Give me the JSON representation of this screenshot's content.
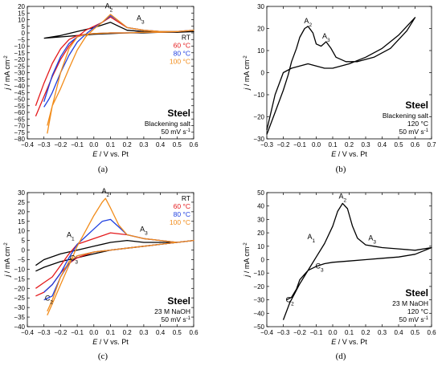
{
  "panel_labels": [
    "(a)",
    "(b)",
    "(c)",
    "(d)"
  ],
  "colors": {
    "RT": "#000000",
    "60 °C": "#e41a1c",
    "80 °C": "#1f3fe0",
    "100 °C": "#f28c1a"
  },
  "chart_data": [
    {
      "type": "line",
      "panel": "(a)",
      "xlabel": "E / V vs. Pt",
      "ylabel": "j / mA cm-2",
      "xlim": [
        -0.4,
        0.6
      ],
      "ylim": [
        -80,
        20
      ],
      "xticks": [
        -0.4,
        -0.3,
        -0.2,
        -0.1,
        0.0,
        0.1,
        0.2,
        0.3,
        0.4,
        0.5,
        0.6
      ],
      "yticks": [
        -80,
        -75,
        -70,
        -65,
        -60,
        -55,
        -50,
        -45,
        -40,
        -35,
        -30,
        -25,
        -20,
        -15,
        -10,
        -5,
        0,
        5,
        10,
        15,
        20
      ],
      "grid": false,
      "legend_position": "right",
      "legend": [
        "RT",
        "60 °C",
        "80 °C",
        "100 °C"
      ],
      "peaks": [
        {
          "letter": "A",
          "sub": "2",
          "x": 0.09,
          "y": 16
        },
        {
          "letter": "A",
          "sub": "3",
          "x": 0.28,
          "y": 7
        }
      ],
      "info_title": "Steel",
      "info_lines": [
        "Blackening salt",
        "50 mV s-1"
      ],
      "series": [
        {
          "name": "RT",
          "x": [
            -0.3,
            -0.2,
            -0.1,
            0.0,
            0.05,
            0.1,
            0.15,
            0.2,
            0.3,
            0.4,
            0.5,
            0.6,
            0.5,
            0.4,
            0.3,
            0.2,
            0.1,
            0.0,
            -0.1,
            -0.2,
            -0.3
          ],
          "y": [
            -4,
            -2,
            1,
            4,
            6,
            8,
            5,
            2,
            1,
            0.5,
            0.5,
            1,
            0.5,
            0.5,
            0,
            0,
            -0.5,
            -1,
            -2,
            -3,
            -4
          ]
        },
        {
          "name": "60 °C",
          "x": [
            -0.35,
            -0.3,
            -0.25,
            -0.2,
            -0.15,
            -0.1,
            -0.05,
            0.0,
            0.05,
            0.1,
            0.15,
            0.2,
            0.3,
            0.4,
            0.5,
            0.6,
            0.5,
            0.4,
            0.3,
            0.2,
            0.1,
            0.0,
            -0.05,
            -0.1,
            -0.15,
            -0.2,
            -0.25,
            -0.3,
            -0.35
          ],
          "y": [
            -63,
            -48,
            -33,
            -20,
            -10,
            -3,
            2,
            5,
            8,
            12,
            8,
            4,
            2,
            1,
            1,
            2,
            1,
            0.5,
            0.5,
            0,
            0,
            -0.5,
            -1,
            -2,
            -5,
            -12,
            -23,
            -38,
            -55
          ]
        },
        {
          "name": "80 °C",
          "x": [
            -0.3,
            -0.27,
            -0.25,
            -0.2,
            -0.15,
            -0.1,
            -0.05,
            0.0,
            0.05,
            0.1,
            0.15,
            0.2,
            0.3,
            0.4,
            0.5,
            0.6,
            0.5,
            0.4,
            0.3,
            0.2,
            0.1,
            0.0,
            -0.05,
            -0.1,
            -0.15,
            -0.2,
            -0.25,
            -0.3
          ],
          "y": [
            -56,
            -50,
            -45,
            -30,
            -17,
            -7,
            -1,
            4,
            8,
            13,
            9,
            4,
            2,
            1,
            1,
            2,
            1,
            0.5,
            0.5,
            0,
            0,
            -0.5,
            -1,
            -3,
            -8,
            -18,
            -32,
            -52
          ]
        },
        {
          "name": "100 °C",
          "x": [
            -0.28,
            -0.25,
            -0.2,
            -0.15,
            -0.1,
            -0.05,
            0.0,
            0.05,
            0.1,
            0.15,
            0.2,
            0.3,
            0.4,
            0.5,
            0.6,
            0.5,
            0.4,
            0.3,
            0.2,
            0.1,
            0.0,
            -0.05,
            -0.1,
            -0.15,
            -0.2,
            -0.25,
            -0.28
          ],
          "y": [
            -76,
            -55,
            -42,
            -27,
            -13,
            -3,
            3,
            8,
            14,
            9,
            4,
            2,
            1,
            1,
            2,
            1,
            0.5,
            0.5,
            0,
            0,
            -0.5,
            -1,
            -3,
            -12,
            -30,
            -55,
            -70
          ]
        }
      ]
    },
    {
      "type": "line",
      "panel": "(b)",
      "xlabel": "E / V vs. Pt",
      "ylabel": "j / mA cm-2",
      "xlim": [
        -0.3,
        0.7
      ],
      "ylim": [
        -30,
        30
      ],
      "xticks": [
        -0.3,
        -0.2,
        -0.1,
        0.0,
        0.1,
        0.2,
        0.3,
        0.4,
        0.5,
        0.6,
        0.7
      ],
      "yticks": [
        -30,
        -20,
        -10,
        0,
        10,
        20,
        30
      ],
      "grid": false,
      "peaks": [
        {
          "letter": "A",
          "sub": "2",
          "x": -0.05,
          "y": 21
        },
        {
          "letter": "A",
          "sub": "3",
          "x": 0.06,
          "y": 14
        }
      ],
      "info_title": "Steel",
      "info_lines": [
        "Blackening salt",
        "120 °C",
        "50 mV s-1"
      ],
      "series": [
        {
          "name": "",
          "x": [
            -0.3,
            -0.25,
            -0.2,
            -0.17,
            -0.15,
            -0.12,
            -0.1,
            -0.07,
            -0.05,
            -0.02,
            0.0,
            0.03,
            0.06,
            0.09,
            0.12,
            0.18,
            0.25,
            0.35,
            0.45,
            0.55,
            0.6,
            0.5,
            0.4,
            0.3,
            0.2,
            0.15,
            0.1,
            0.05,
            0.0,
            -0.05,
            -0.1,
            -0.15,
            -0.2,
            -0.25,
            -0.3
          ],
          "y": [
            -28,
            -18,
            -8,
            -1,
            5,
            11,
            16,
            20,
            21,
            18,
            13,
            12,
            14,
            11,
            7,
            5,
            5,
            7,
            11,
            19,
            25,
            17,
            11,
            7,
            4,
            3,
            2,
            2,
            3,
            4,
            3,
            2,
            0,
            -10,
            -26
          ]
        }
      ]
    },
    {
      "type": "line",
      "panel": "(c)",
      "xlabel": "E / V vs. Pt",
      "ylabel": "j / mA cm-2",
      "xlim": [
        -0.4,
        0.6
      ],
      "ylim": [
        -40,
        30
      ],
      "xticks": [
        -0.4,
        -0.3,
        -0.2,
        -0.1,
        0.0,
        0.1,
        0.2,
        0.3,
        0.4,
        0.5,
        0.6
      ],
      "yticks": [
        -40,
        -35,
        -30,
        -25,
        -20,
        -15,
        -10,
        -5,
        0,
        5,
        10,
        15,
        20,
        25,
        30
      ],
      "grid": false,
      "legend_position": "top-right",
      "legend": [
        "RT",
        "60 °C",
        "80 °C",
        "100 °C"
      ],
      "peaks": [
        {
          "letter": "A",
          "sub": "1",
          "x": -0.14,
          "y": 5
        },
        {
          "letter": "A",
          "sub": "2",
          "x": 0.07,
          "y": 28
        },
        {
          "letter": "A",
          "sub": "3",
          "x": 0.3,
          "y": 8
        },
        {
          "letter": "C",
          "sub": "2",
          "x": -0.27,
          "y": -28
        },
        {
          "letter": "C",
          "sub": "3",
          "x": -0.12,
          "y": -7
        }
      ],
      "info_title": "Steel",
      "info_lines": [
        "23 M NaOH",
        "50 mV s-1"
      ],
      "series": [
        {
          "name": "RT",
          "x": [
            -0.35,
            -0.3,
            -0.2,
            -0.1,
            0.0,
            0.1,
            0.2,
            0.3,
            0.4,
            0.5,
            0.6,
            0.5,
            0.4,
            0.3,
            0.2,
            0.1,
            0.0,
            -0.1,
            -0.2,
            -0.3,
            -0.35
          ],
          "y": [
            -8,
            -5,
            -2,
            0,
            2,
            4,
            5,
            4,
            4,
            4,
            5,
            4,
            3,
            2,
            1,
            0,
            -2,
            -4,
            -6,
            -9,
            -11
          ]
        },
        {
          "name": "60 °C",
          "x": [
            -0.35,
            -0.3,
            -0.25,
            -0.2,
            -0.15,
            -0.1,
            0.0,
            0.1,
            0.2,
            0.3,
            0.4,
            0.5,
            0.6,
            0.5,
            0.4,
            0.3,
            0.2,
            0.1,
            0.0,
            -0.1,
            -0.15,
            -0.2,
            -0.25,
            -0.3,
            -0.35
          ],
          "y": [
            -20,
            -17,
            -14,
            -8,
            -2,
            3,
            6,
            9,
            8,
            6,
            5,
            4,
            5,
            4,
            3,
            2,
            1,
            0,
            -1,
            -4,
            -7,
            -12,
            -18,
            -22,
            -24
          ]
        },
        {
          "name": "80 °C",
          "x": [
            -0.3,
            -0.25,
            -0.2,
            -0.15,
            -0.1,
            -0.05,
            0.0,
            0.05,
            0.1,
            0.15,
            0.2,
            0.3,
            0.4,
            0.5,
            0.6,
            0.5,
            0.4,
            0.3,
            0.2,
            0.1,
            0.0,
            -0.1,
            -0.15,
            -0.2,
            -0.25,
            -0.3
          ],
          "y": [
            -22,
            -18,
            -12,
            -4,
            3,
            7,
            11,
            15,
            16,
            12,
            8,
            6,
            5,
            4,
            5,
            4,
            3,
            2,
            1,
            0,
            -1,
            -3,
            -7,
            -14,
            -24,
            -26
          ]
        },
        {
          "name": "100 °C",
          "x": [
            -0.28,
            -0.25,
            -0.2,
            -0.15,
            -0.1,
            -0.05,
            0.0,
            0.05,
            0.07,
            0.1,
            0.15,
            0.2,
            0.3,
            0.4,
            0.5,
            0.6,
            0.5,
            0.4,
            0.3,
            0.2,
            0.1,
            0.0,
            -0.1,
            -0.15,
            -0.2,
            -0.25,
            -0.28
          ],
          "y": [
            -34,
            -28,
            -18,
            -8,
            2,
            10,
            18,
            25,
            27,
            22,
            13,
            8,
            6,
            5,
            4,
            5,
            4,
            3,
            2,
            1,
            0,
            -1,
            -3,
            -6,
            -14,
            -26,
            -32
          ]
        }
      ]
    },
    {
      "type": "line",
      "panel": "(d)",
      "xlabel": "E / V vs. Pt",
      "ylabel": "j / mA cm-2",
      "xlim": [
        -0.4,
        0.6
      ],
      "ylim": [
        -50,
        50
      ],
      "xticks": [
        -0.4,
        -0.3,
        -0.2,
        -0.1,
        0.0,
        0.1,
        0.2,
        0.3,
        0.4,
        0.5,
        0.6
      ],
      "yticks": [
        -50,
        -40,
        -30,
        -20,
        -10,
        0,
        10,
        20,
        30,
        40,
        50
      ],
      "grid": false,
      "peaks": [
        {
          "letter": "A",
          "sub": "1",
          "x": -0.13,
          "y": 13
        },
        {
          "letter": "A",
          "sub": "2",
          "x": 0.06,
          "y": 43
        },
        {
          "letter": "A",
          "sub": "3",
          "x": 0.24,
          "y": 12
        },
        {
          "letter": "C",
          "sub": "2",
          "x": -0.26,
          "y": -34
        },
        {
          "letter": "C",
          "sub": "3",
          "x": -0.08,
          "y": -9
        }
      ],
      "info_title": "Steel",
      "info_lines": [
        "23 M NaOH",
        "120 °C",
        "50 mV s-1"
      ],
      "series": [
        {
          "name": "",
          "x": [
            -0.3,
            -0.26,
            -0.23,
            -0.2,
            -0.15,
            -0.1,
            -0.05,
            0.0,
            0.03,
            0.06,
            0.09,
            0.12,
            0.15,
            0.2,
            0.25,
            0.3,
            0.4,
            0.5,
            0.6,
            0.5,
            0.4,
            0.3,
            0.2,
            0.1,
            0.0,
            -0.05,
            -0.1,
            -0.15,
            -0.2,
            -0.22,
            -0.25,
            -0.28
          ],
          "y": [
            -45,
            -32,
            -25,
            -18,
            -8,
            2,
            12,
            25,
            36,
            42,
            38,
            25,
            16,
            11,
            10,
            9,
            8,
            7,
            9,
            4,
            2,
            1,
            0,
            -1,
            -2,
            -3,
            -5,
            -8,
            -15,
            -22,
            -28,
            -30
          ]
        }
      ]
    }
  ]
}
